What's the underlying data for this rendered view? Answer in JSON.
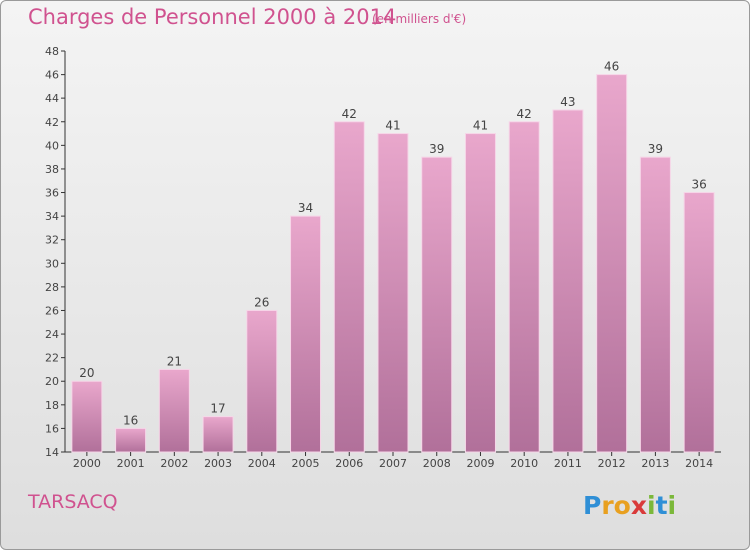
{
  "header": {
    "title": "Charges de Personnel 2000 à 2014",
    "subtitle": "(en milliers d'€)"
  },
  "footer": {
    "place": "TARSACQ",
    "logo_letters": [
      "P",
      "r",
      "o",
      "x",
      "i",
      "t",
      "i"
    ],
    "logo_colors": [
      "#2f8fd6",
      "#e8a020",
      "#e8a020",
      "#d93a3a",
      "#7bb83a",
      "#2f8fd6",
      "#7bb83a"
    ]
  },
  "colors": {
    "bar_top": "#e9a7cc",
    "bar_bottom": "#b1709a",
    "bar_edge": "#f6d6e8",
    "text": "#444444",
    "accent": "#d0528f"
  },
  "chart_data": {
    "type": "bar",
    "categories": [
      "2000",
      "2001",
      "2002",
      "2003",
      "2004",
      "2005",
      "2006",
      "2007",
      "2008",
      "2009",
      "2010",
      "2011",
      "2012",
      "2013",
      "2014"
    ],
    "values": [
      20,
      16,
      21,
      17,
      26,
      34,
      42,
      41,
      39,
      41,
      42,
      43,
      46,
      39,
      36
    ],
    "yticks": [
      14,
      16,
      18,
      20,
      22,
      24,
      26,
      28,
      30,
      32,
      34,
      36,
      38,
      40,
      42,
      44,
      46,
      48
    ],
    "ylim": [
      14,
      48
    ],
    "grid": false,
    "data_labels": true
  }
}
